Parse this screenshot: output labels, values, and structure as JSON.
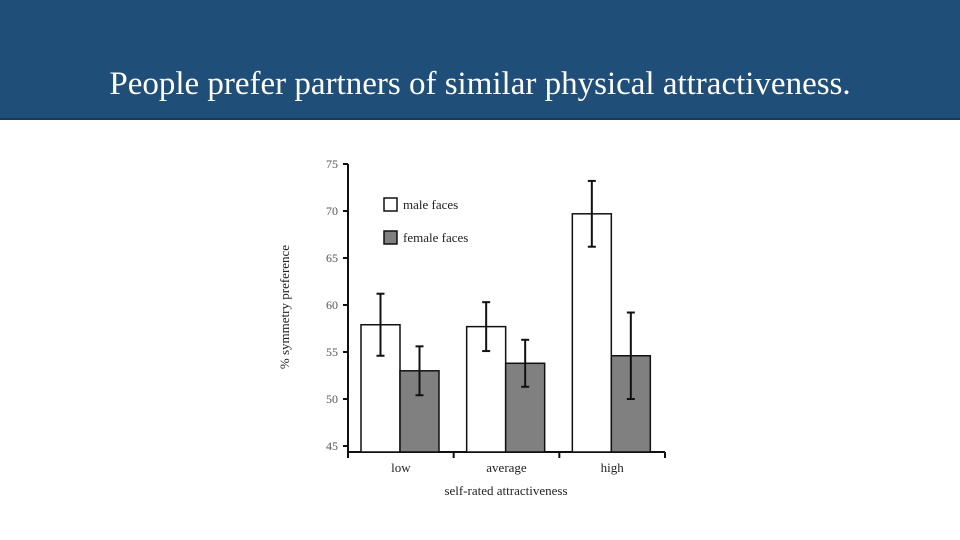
{
  "slide": {
    "title": "People prefer partners of similar physical attractiveness."
  },
  "chart_data": {
    "type": "bar",
    "xlabel": "self-rated attractiveness",
    "ylabel": "% symmetry preference",
    "categories": [
      "low",
      "average",
      "high"
    ],
    "ylim": [
      45,
      75
    ],
    "yticks": [
      45,
      50,
      55,
      60,
      65,
      70,
      75
    ],
    "grid": false,
    "legend_position": "top-left",
    "series": [
      {
        "name": "male faces",
        "color": "#ffffff",
        "values": [
          57.9,
          57.7,
          69.7
        ],
        "errors": [
          3.3,
          2.6,
          3.5
        ]
      },
      {
        "name": "female faces",
        "color": "#808080",
        "values": [
          53.0,
          53.8,
          54.6
        ],
        "errors": [
          2.6,
          2.5,
          4.6
        ]
      }
    ]
  }
}
